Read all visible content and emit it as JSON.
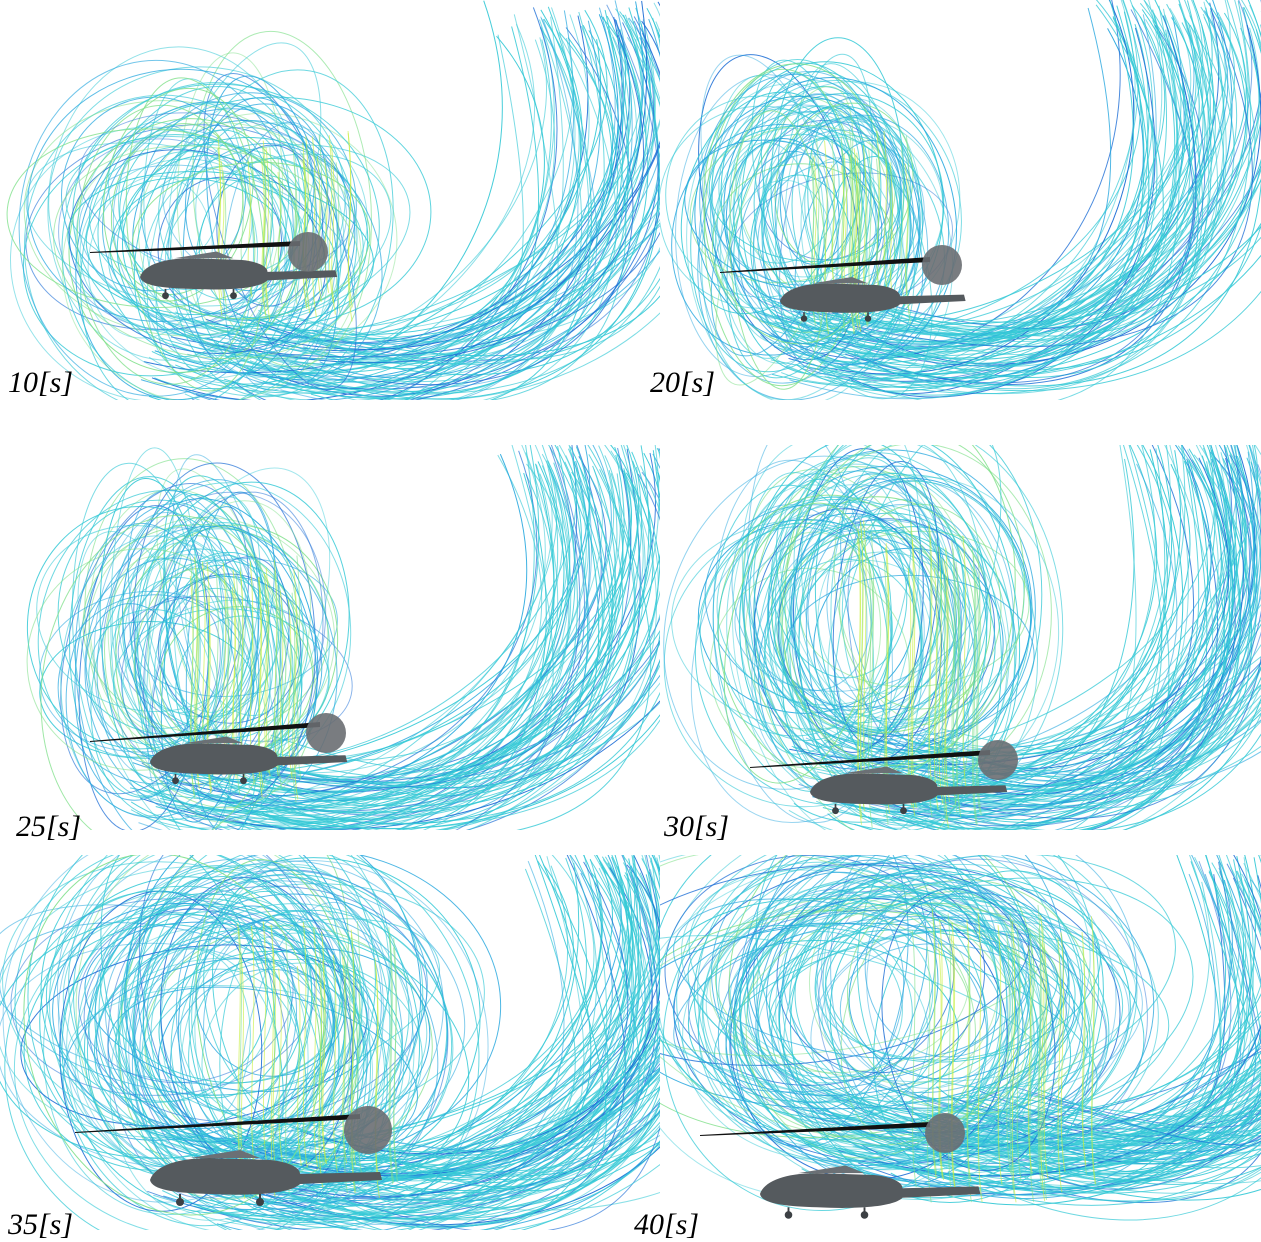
{
  "figure": {
    "panels": [
      {
        "caption": "10[s]",
        "colormap": [
          "#1f6fd6",
          "#2aa8df",
          "#36c9d6",
          "#7fe08a",
          "#c7ef3a"
        ]
      },
      {
        "caption": "20[s]",
        "colormap": [
          "#1f6fd6",
          "#2aa8df",
          "#36c9d6",
          "#7fe08a",
          "#c7ef3a"
        ]
      },
      {
        "caption": "25[s]",
        "colormap": [
          "#1f6fd6",
          "#2aa8df",
          "#36c9d6",
          "#7fe08a",
          "#c7ef3a"
        ]
      },
      {
        "caption": "30[s]",
        "colormap": [
          "#1f6fd6",
          "#2aa8df",
          "#36c9d6",
          "#7fe08a",
          "#c7ef3a"
        ]
      },
      {
        "caption": "35[s]",
        "colormap": [
          "#1f6fd6",
          "#2aa8df",
          "#36c9d6",
          "#7fe08a",
          "#c7ef3a"
        ]
      },
      {
        "caption": "40[s]",
        "colormap": [
          "#1f6fd6",
          "#2aa8df",
          "#36c9d6",
          "#7fe08a",
          "#c7ef3a"
        ]
      }
    ],
    "helicopter_color": "#555a5e",
    "rotor_color": "#111111"
  }
}
